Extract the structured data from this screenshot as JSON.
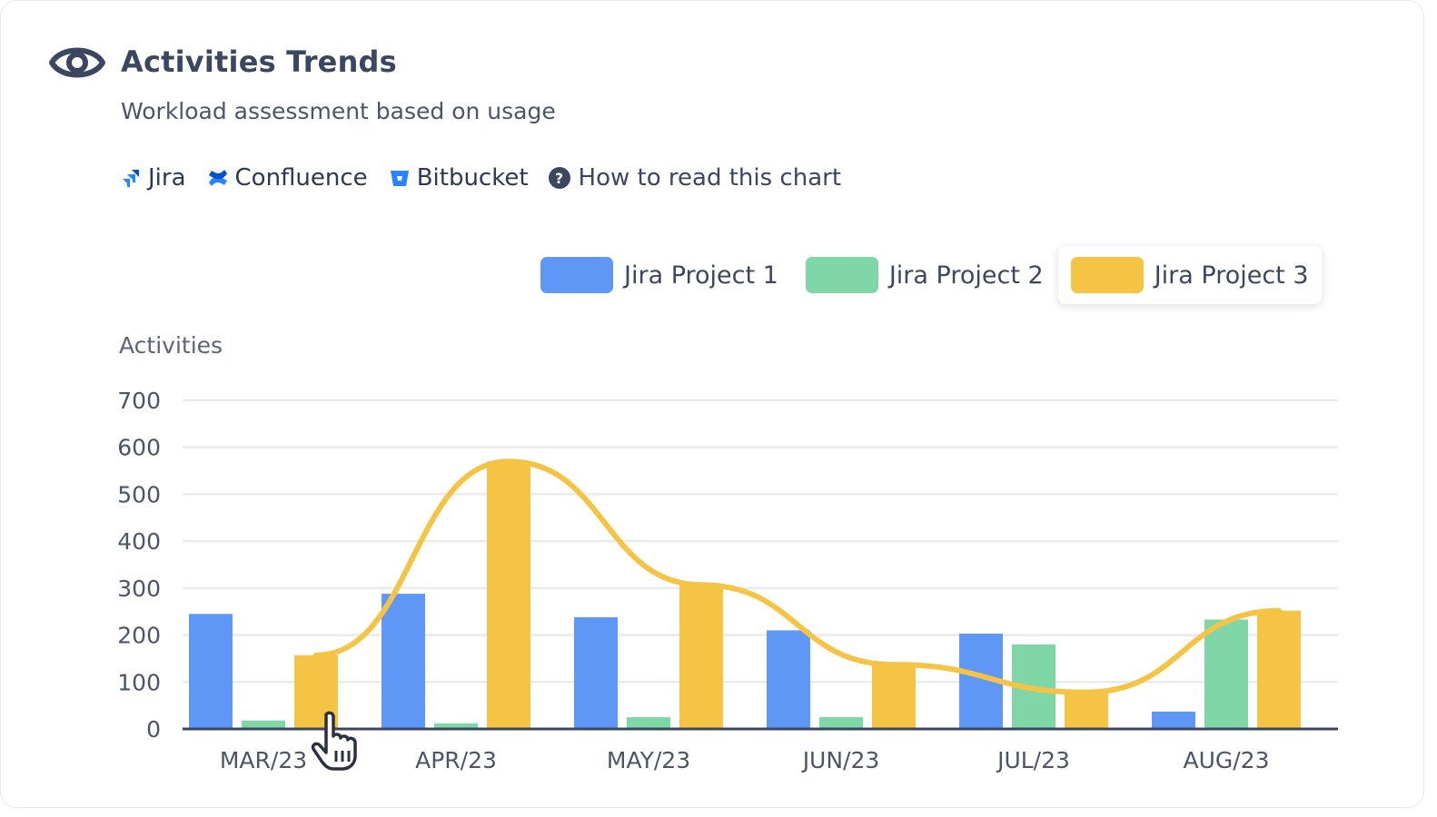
{
  "header": {
    "title": "Activities Trends",
    "subtitle": "Workload assessment based on usage"
  },
  "sources": [
    {
      "label": "Jira",
      "icon": "jira-icon"
    },
    {
      "label": "Confluence",
      "icon": "confluence-icon"
    },
    {
      "label": "Bitbucket",
      "icon": "bitbucket-icon"
    }
  ],
  "help": {
    "label": "How to read this chart",
    "icon": "question-circle-icon"
  },
  "colors": {
    "project1": "#5f97f6",
    "project2": "#7fd6a6",
    "project3": "#f5c444",
    "text": "#3b4761",
    "brand": "#2684ff"
  },
  "chart_data": {
    "type": "bar",
    "ylabel": "Activities",
    "xlabel": "",
    "ylim": [
      0,
      700
    ],
    "yticks": [
      "0",
      "100",
      "200",
      "300",
      "400",
      "500",
      "600",
      "700"
    ],
    "grid": true,
    "legend_position": "top-right",
    "categories": [
      "MAR/23",
      "APR/23",
      "MAY/23",
      "JUN/23",
      "JUL/23",
      "AUG/23"
    ],
    "series": [
      {
        "name": "Jira Project 1",
        "color": "#5f97f6",
        "values": [
          245,
          288,
          238,
          210,
          203,
          37
        ]
      },
      {
        "name": "Jira Project 2",
        "color": "#7fd6a6",
        "values": [
          18,
          12,
          25,
          25,
          180,
          233
        ]
      },
      {
        "name": "Jira Project 3",
        "color": "#f5c444",
        "values": [
          157,
          570,
          307,
          137,
          78,
          252
        ]
      }
    ],
    "trend_line": {
      "series": "Jira Project 3",
      "smooth": true
    },
    "highlighted_legend": "Jira Project 3"
  }
}
